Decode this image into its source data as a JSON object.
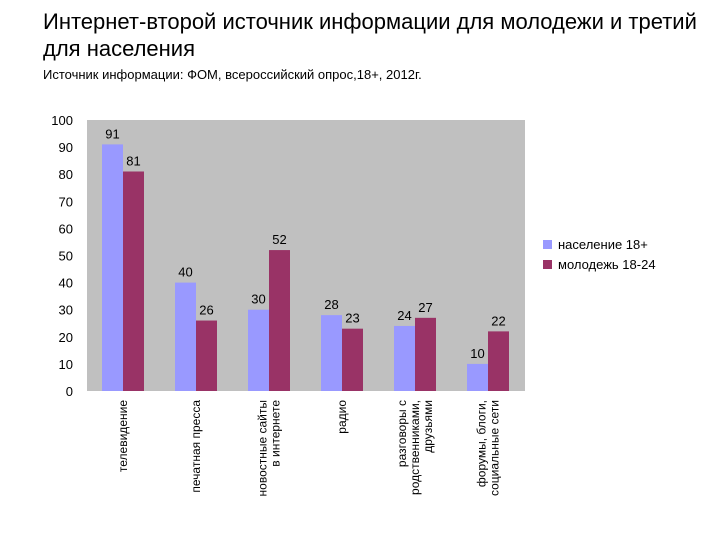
{
  "title": "Интернет-второй источник информации для молодежи и третий для населения",
  "subtitle": "Источник информации: ФОМ, всероссийский опрос,18+, 2012г.",
  "chart_data": {
    "type": "bar",
    "categories": [
      [
        "телевидение"
      ],
      [
        "печатная пресса"
      ],
      [
        "новостные сайты",
        "в интернете"
      ],
      [
        "радио"
      ],
      [
        "разговоры с",
        "родственниками,",
        "друзьями"
      ],
      [
        "форумы, блоги,",
        "социальные сети"
      ]
    ],
    "series": [
      {
        "name": "население 18+",
        "values": [
          91,
          40,
          30,
          28,
          24,
          10
        ],
        "color": "#9999ff"
      },
      {
        "name": "молодежь 18-24",
        "values": [
          81,
          26,
          52,
          23,
          27,
          22
        ],
        "color": "#993366"
      }
    ],
    "ylim": [
      0,
      100
    ],
    "yticks": [
      0,
      10,
      20,
      30,
      40,
      50,
      60,
      70,
      80,
      90,
      100
    ],
    "plot_background": "#c0c0c0",
    "grid": false,
    "legend_position": "right",
    "data_labels": true,
    "category_label_orientation": "vertical"
  }
}
